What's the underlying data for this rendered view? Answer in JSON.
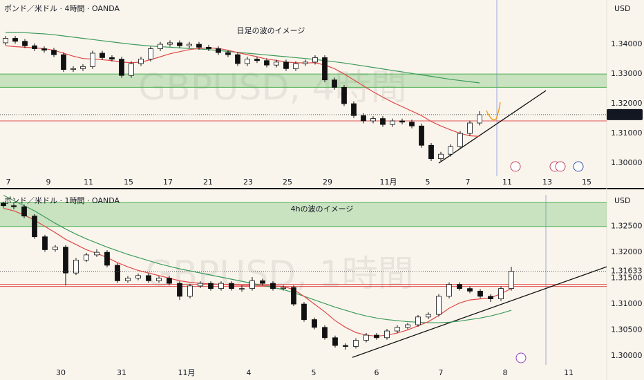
{
  "chart_data": [
    {
      "type": "candlestick",
      "title": "ポンド／米ドル · 4時間 · OANDA",
      "watermark": "GBPUSD, 4時間",
      "note": "日足の波のイメージ",
      "currency": "USD",
      "price": 1.31633,
      "ylim": [
        1.2956,
        1.3549
      ],
      "yticks": [
        {
          "value": 1.34,
          "label": "1.34000"
        },
        {
          "value": 1.33,
          "label": "1.33000"
        },
        {
          "value": 1.32,
          "label": "1.32000"
        },
        {
          "value": 1.31,
          "label": "1.31000"
        },
        {
          "value": 1.3,
          "label": "1.30000"
        }
      ],
      "x_labels": [
        "7",
        "9",
        "11",
        "15",
        "17",
        "21",
        "23",
        "25",
        "29",
        "11月",
        "5",
        "7",
        "11",
        "13",
        "15"
      ],
      "zone": [
        1.3255,
        1.33
      ],
      "levels": [
        1.3142
      ],
      "trendline": [
        1.3,
        1.3244
      ],
      "candles": [
        [
          1.3405,
          1.3428,
          1.3397,
          1.342
        ],
        [
          1.342,
          1.3428,
          1.3402,
          1.341
        ],
        [
          1.341,
          1.3418,
          1.3387,
          1.3395
        ],
        [
          1.3395,
          1.3403,
          1.3377,
          1.3385
        ],
        [
          1.3385,
          1.3393,
          1.3372,
          1.338
        ],
        [
          1.338,
          1.3388,
          1.3357,
          1.3365
        ],
        [
          1.3365,
          1.3373,
          1.3307,
          1.3315
        ],
        [
          1.3315,
          1.3326,
          1.3307,
          1.3318
        ],
        [
          1.3318,
          1.3333,
          1.331,
          1.3325
        ],
        [
          1.3325,
          1.3378,
          1.3317,
          1.337
        ],
        [
          1.337,
          1.3378,
          1.3347,
          1.3355
        ],
        [
          1.3355,
          1.3363,
          1.3342,
          1.335
        ],
        [
          1.335,
          1.3358,
          1.3287,
          1.3295
        ],
        [
          1.3295,
          1.3343,
          1.3287,
          1.3335
        ],
        [
          1.3335,
          1.3358,
          1.3327,
          1.335
        ],
        [
          1.335,
          1.3393,
          1.3342,
          1.3385
        ],
        [
          1.3385,
          1.3408,
          1.3377,
          1.34
        ],
        [
          1.34,
          1.3413,
          1.3392,
          1.3405
        ],
        [
          1.3405,
          1.3413,
          1.3387,
          1.3395
        ],
        [
          1.3395,
          1.3408,
          1.3387,
          1.34
        ],
        [
          1.34,
          1.3408,
          1.3382,
          1.339
        ],
        [
          1.339,
          1.3398,
          1.3377,
          1.3385
        ],
        [
          1.3385,
          1.3393,
          1.3364,
          1.3372
        ],
        [
          1.3372,
          1.338,
          1.3357,
          1.3365
        ],
        [
          1.3365,
          1.3373,
          1.3327,
          1.3335
        ],
        [
          1.3335,
          1.3358,
          1.3327,
          1.335
        ],
        [
          1.335,
          1.3358,
          1.3337,
          1.3345
        ],
        [
          1.3345,
          1.3353,
          1.3322,
          1.333
        ],
        [
          1.333,
          1.3348,
          1.3322,
          1.334
        ],
        [
          1.334,
          1.3348,
          1.331,
          1.3318
        ],
        [
          1.3318,
          1.3343,
          1.331,
          1.3335
        ],
        [
          1.3335,
          1.3348,
          1.3327,
          1.334
        ],
        [
          1.334,
          1.3363,
          1.3332,
          1.3355
        ],
        [
          1.3355,
          1.3363,
          1.3272,
          1.328
        ],
        [
          1.328,
          1.3288,
          1.3247,
          1.3255
        ],
        [
          1.3255,
          1.3263,
          1.3192,
          1.32
        ],
        [
          1.32,
          1.3208,
          1.3152,
          1.316
        ],
        [
          1.316,
          1.3168,
          1.3134,
          1.3142
        ],
        [
          1.3142,
          1.3158,
          1.3134,
          1.315
        ],
        [
          1.315,
          1.3158,
          1.3122,
          1.313
        ],
        [
          1.313,
          1.315,
          1.3122,
          1.3142
        ],
        [
          1.3142,
          1.315,
          1.313,
          1.3138
        ],
        [
          1.3138,
          1.3146,
          1.3117,
          1.3125
        ],
        [
          1.3125,
          1.3133,
          1.3052,
          1.306
        ],
        [
          1.306,
          1.3068,
          1.3007,
          1.3015
        ],
        [
          1.3015,
          1.3038,
          1.3007,
          1.303
        ],
        [
          1.303,
          1.3063,
          1.3022,
          1.3055
        ],
        [
          1.3055,
          1.3108,
          1.3047,
          1.31
        ],
        [
          1.31,
          1.3143,
          1.3092,
          1.3135
        ],
        [
          1.3135,
          1.3175,
          1.3127,
          1.3163
        ]
      ],
      "ma_fast": [
        1.3395,
        1.3392,
        1.339,
        1.3388,
        1.3385,
        1.338,
        1.337,
        1.336,
        1.3352,
        1.335,
        1.3348,
        1.3345,
        1.334,
        1.3338,
        1.334,
        1.3348,
        1.3358,
        1.3368,
        1.3375,
        1.3382,
        1.3386,
        1.3388,
        1.3386,
        1.338,
        1.3372,
        1.3365,
        1.3358,
        1.335,
        1.3346,
        1.334,
        1.3338,
        1.3337,
        1.3338,
        1.333,
        1.3318,
        1.33,
        1.328,
        1.326,
        1.324,
        1.3222,
        1.3205,
        1.319,
        1.3175,
        1.316,
        1.314,
        1.3125,
        1.3112,
        1.31,
        1.3092,
        1.309
      ],
      "ma_slow": [
        1.344,
        1.344,
        1.3439,
        1.3437,
        1.3435,
        1.3432,
        1.3428,
        1.3424,
        1.342,
        1.3416,
        1.3412,
        1.3408,
        1.3404,
        1.34,
        1.3397,
        1.3394,
        1.3392,
        1.339,
        1.3388,
        1.3386,
        1.3384,
        1.3382,
        1.3379,
        1.3376,
        1.3373,
        1.337,
        1.3367,
        1.3364,
        1.3361,
        1.3358,
        1.3355,
        1.3352,
        1.3349,
        1.3345,
        1.3341,
        1.3337,
        1.3332,
        1.3327,
        1.3322,
        1.3317,
        1.3312,
        1.3307,
        1.3302,
        1.3297,
        1.3292,
        1.3287,
        1.3282,
        1.3278,
        1.3274,
        1.327
      ]
    },
    {
      "type": "candlestick",
      "title": "ポンド／米ドル · 1時間 · OANDA",
      "watermark": "GBPUSD, 1時間",
      "note": "4hの波のイメージ",
      "currency": "USD",
      "price": 1.31633,
      "ylim": [
        1.298,
        1.3311
      ],
      "yticks": [
        {
          "value": 1.325,
          "label": "1.32500"
        },
        {
          "value": 1.32,
          "label": "1.32000"
        },
        {
          "value": 1.315,
          "label": "1.31500"
        },
        {
          "value": 1.31,
          "label": "1.31000"
        },
        {
          "value": 1.305,
          "label": "1.30500"
        },
        {
          "value": 1.3,
          "label": "1.30000"
        }
      ],
      "x_labels": [
        "30",
        "31",
        "11月",
        "4",
        "5",
        "6",
        "7",
        "8",
        "11"
      ],
      "zone": [
        1.325,
        1.3296
      ],
      "levels": [
        1.3138,
        1.3134
      ],
      "trendline": [
        1.2997,
        1.3172
      ],
      "candles": [
        [
          1.3295,
          1.3298,
          1.3286,
          1.329
        ],
        [
          1.329,
          1.3294,
          1.3283,
          1.3288
        ],
        [
          1.3288,
          1.3292,
          1.3266,
          1.327
        ],
        [
          1.327,
          1.3274,
          1.3226,
          1.323
        ],
        [
          1.323,
          1.3234,
          1.3201,
          1.3205
        ],
        [
          1.3205,
          1.3214,
          1.3201,
          1.321
        ],
        [
          1.321,
          1.3214,
          1.3136,
          1.316
        ],
        [
          1.316,
          1.3189,
          1.3156,
          1.3185
        ],
        [
          1.3185,
          1.3199,
          1.3181,
          1.3195
        ],
        [
          1.3195,
          1.3206,
          1.3191,
          1.32
        ],
        [
          1.32,
          1.3204,
          1.3171,
          1.3175
        ],
        [
          1.3175,
          1.3179,
          1.3141,
          1.3145
        ],
        [
          1.3145,
          1.3154,
          1.3141,
          1.315
        ],
        [
          1.315,
          1.3159,
          1.3146,
          1.3155
        ],
        [
          1.3155,
          1.3159,
          1.3141,
          1.3145
        ],
        [
          1.3145,
          1.3154,
          1.3141,
          1.315
        ],
        [
          1.315,
          1.3154,
          1.3136,
          1.314
        ],
        [
          1.314,
          1.3144,
          1.3108,
          1.3115
        ],
        [
          1.3115,
          1.3139,
          1.3111,
          1.3135
        ],
        [
          1.3135,
          1.3144,
          1.3131,
          1.314
        ],
        [
          1.314,
          1.3144,
          1.3126,
          1.313
        ],
        [
          1.313,
          1.3144,
          1.3126,
          1.314
        ],
        [
          1.314,
          1.3144,
          1.3126,
          1.313
        ],
        [
          1.313,
          1.3136,
          1.3124,
          1.313
        ],
        [
          1.313,
          1.3152,
          1.3126,
          1.3145
        ],
        [
          1.3145,
          1.3149,
          1.3136,
          1.314
        ],
        [
          1.314,
          1.3144,
          1.3126,
          1.313
        ],
        [
          1.313,
          1.3136,
          1.3126,
          1.3132
        ],
        [
          1.3132,
          1.3136,
          1.3096,
          1.31
        ],
        [
          1.31,
          1.3104,
          1.3066,
          1.307
        ],
        [
          1.307,
          1.3074,
          1.3051,
          1.3055
        ],
        [
          1.3055,
          1.3059,
          1.3031,
          1.3035
        ],
        [
          1.3035,
          1.3039,
          1.3016,
          1.302
        ],
        [
          1.302,
          1.3024,
          1.3012,
          1.3018
        ],
        [
          1.3018,
          1.3034,
          1.3014,
          1.303
        ],
        [
          1.303,
          1.3044,
          1.3026,
          1.304
        ],
        [
          1.304,
          1.3044,
          1.3031,
          1.3035
        ],
        [
          1.3035,
          1.3052,
          1.3031,
          1.3048
        ],
        [
          1.3048,
          1.3059,
          1.3044,
          1.3055
        ],
        [
          1.3055,
          1.3064,
          1.3051,
          1.306
        ],
        [
          1.306,
          1.3079,
          1.3056,
          1.3075
        ],
        [
          1.3075,
          1.3084,
          1.3071,
          1.308
        ],
        [
          1.308,
          1.3119,
          1.3076,
          1.3115
        ],
        [
          1.3115,
          1.3142,
          1.3111,
          1.3138
        ],
        [
          1.3138,
          1.3142,
          1.3126,
          1.313
        ],
        [
          1.313,
          1.3134,
          1.3121,
          1.3125
        ],
        [
          1.3125,
          1.3129,
          1.3111,
          1.3115
        ],
        [
          1.3115,
          1.3119,
          1.3104,
          1.311
        ],
        [
          1.311,
          1.3134,
          1.3106,
          1.313
        ],
        [
          1.313,
          1.3172,
          1.3126,
          1.3163
        ]
      ],
      "ma_fast": [
        1.3285,
        1.328,
        1.3272,
        1.3262,
        1.325,
        1.3238,
        1.3225,
        1.3215,
        1.3205,
        1.3198,
        1.319,
        1.318,
        1.3172,
        1.3165,
        1.316,
        1.3155,
        1.315,
        1.3145,
        1.3142,
        1.314,
        1.3139,
        1.3138,
        1.3137,
        1.3136,
        1.3136,
        1.3136,
        1.3135,
        1.3134,
        1.3128,
        1.3115,
        1.31,
        1.3085,
        1.3068,
        1.3055,
        1.3045,
        1.304,
        1.3038,
        1.304,
        1.3044,
        1.305,
        1.3058,
        1.3066,
        1.3078,
        1.3092,
        1.3102,
        1.3108,
        1.311,
        1.3112,
        1.312,
        1.313
      ],
      "ma_slow": [
        1.331,
        1.33,
        1.329,
        1.328,
        1.3268,
        1.3256,
        1.3245,
        1.3235,
        1.3226,
        1.3218,
        1.321,
        1.3203,
        1.3196,
        1.319,
        1.3184,
        1.3178,
        1.3173,
        1.3168,
        1.3164,
        1.316,
        1.3156,
        1.3152,
        1.3148,
        1.3144,
        1.314,
        1.3136,
        1.3132,
        1.3128,
        1.3122,
        1.3115,
        1.3108,
        1.3101,
        1.3094,
        1.3088,
        1.3082,
        1.3077,
        1.3073,
        1.307,
        1.3068,
        1.3066,
        1.3065,
        1.3064,
        1.3064,
        1.3065,
        1.3067,
        1.307,
        1.3073,
        1.3077,
        1.3082,
        1.3088
      ]
    }
  ]
}
